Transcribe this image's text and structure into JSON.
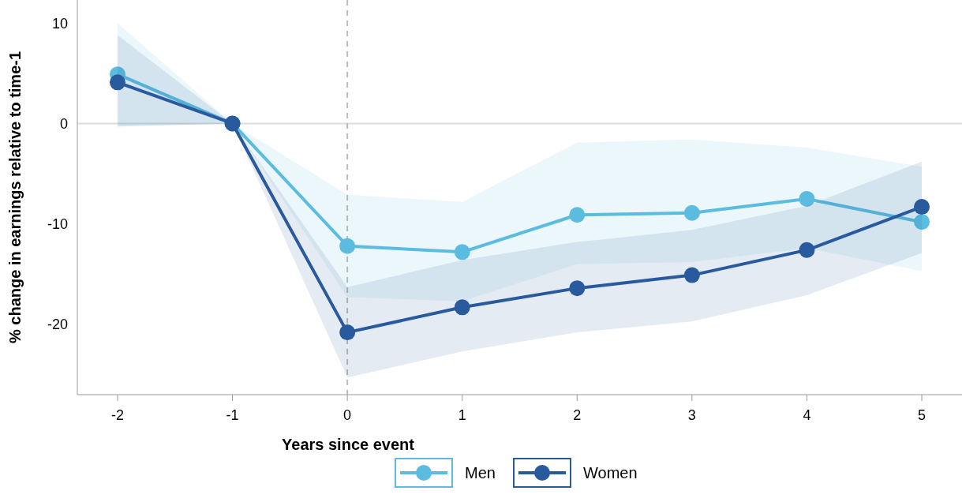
{
  "chart_data": {
    "type": "line",
    "xlabel": "Years since event",
    "ylabel": "% change in earnings relative to time-1",
    "x": [
      -2,
      -1,
      0,
      1,
      2,
      3,
      4,
      5
    ],
    "series": [
      {
        "name": "Men",
        "color": "#5bbcdf",
        "values": [
          4.9,
          0,
          -12.2,
          -12.8,
          -9.1,
          -8.9,
          -7.5,
          -9.8
        ],
        "lower": [
          -0.3,
          0,
          -17.3,
          -17.7,
          -14,
          -13.8,
          -12.4,
          -14.7
        ],
        "upper": [
          10,
          0,
          -7.1,
          -7.8,
          -1.9,
          -1.6,
          -2.4,
          -4.3
        ]
      },
      {
        "name": "Women",
        "color": "#2a5a9e",
        "values": [
          4.1,
          0,
          -20.8,
          -18.3,
          -16.4,
          -15.1,
          -12.6,
          -8.3
        ],
        "lower": [
          -0.3,
          0,
          -25.3,
          -22.7,
          -20.8,
          -19.7,
          -17.1,
          -12.9
        ],
        "upper": [
          8.8,
          0,
          -16.3,
          -13.6,
          -11.8,
          -10.6,
          -8.2,
          -3.8
        ]
      }
    ],
    "xlim": [
      -2.35,
      5.35
    ],
    "ylim": [
      -27,
      12.3
    ],
    "xticks": [
      -2,
      -1,
      0,
      1,
      2,
      3,
      4,
      5
    ],
    "yticks": [
      -20,
      -10,
      0,
      10
    ],
    "ref_lines": [
      {
        "axis": "y",
        "value": 0,
        "color": "#dddddd",
        "line_style": "solid"
      },
      {
        "axis": "x",
        "value": 0,
        "color": "#bbbbbb",
        "line_style": "dashed"
      }
    ],
    "marker": "circle",
    "line_style": "solid",
    "grid": false,
    "legend": "bottom"
  }
}
